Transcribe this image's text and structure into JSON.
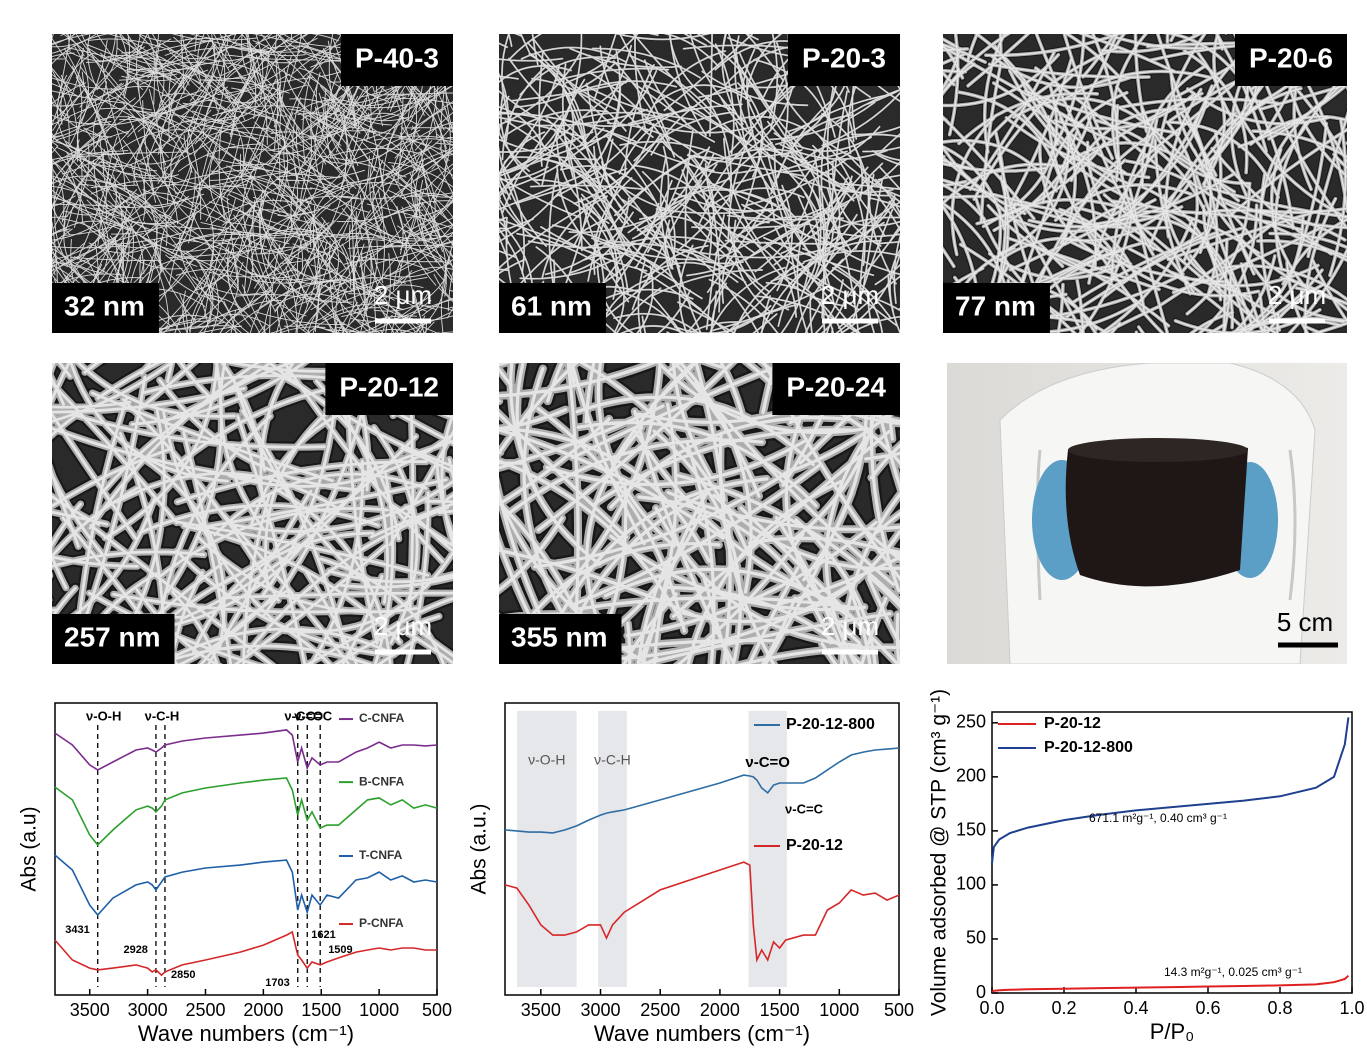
{
  "panels": [
    {
      "label": "P-40-3",
      "diameter": "32 nm",
      "scale": "2 μm"
    },
    {
      "label": "P-20-3",
      "diameter": "61 nm",
      "scale": "2 μm"
    },
    {
      "label": "P-20-6",
      "diameter": "77 nm",
      "scale": "2 μm"
    },
    {
      "label": "P-20-12",
      "diameter": "257 nm",
      "scale": "2 μm"
    },
    {
      "label": "P-20-24",
      "diameter": "355 nm",
      "scale": "2 μm"
    }
  ],
  "photo": {
    "scale": "5 cm"
  },
  "chart_data": [
    {
      "type": "line",
      "x_label": "Wave numbers (cm⁻¹)",
      "y_label": "Abs (a.u)",
      "xlim": [
        3800,
        500
      ],
      "xticks": [
        3500,
        3000,
        2500,
        2000,
        1500,
        1000,
        500
      ],
      "ylim": [
        0,
        100
      ],
      "x": [
        3800,
        3650,
        3500,
        3431,
        3300,
        3100,
        3000,
        2960,
        2928,
        2880,
        2850,
        2700,
        2500,
        2200,
        2000,
        1800,
        1750,
        1703,
        1670,
        1621,
        1580,
        1509,
        1450,
        1350,
        1200,
        1100,
        1000,
        900,
        800,
        700,
        600,
        500
      ],
      "series": [
        {
          "name": "C-CNFA",
          "color": "#7b2d8e",
          "values": [
            89.7,
            85.6,
            78.8,
            77.1,
            79.8,
            83.9,
            84.6,
            83.9,
            83.2,
            84.6,
            85.6,
            87.0,
            88.0,
            89.0,
            89.7,
            90.8,
            89.0,
            79.8,
            84.6,
            77.7,
            81.2,
            78.8,
            79.8,
            79.8,
            83.2,
            84.6,
            86.6,
            84.6,
            85.6,
            85.6,
            85.3,
            85.6
          ]
        },
        {
          "name": "B-CNFA",
          "color": "#2ca02c",
          "values": [
            71.2,
            66.8,
            54.8,
            51.4,
            56.5,
            63.4,
            64.7,
            64.0,
            62.7,
            64.7,
            66.8,
            69.2,
            70.9,
            72.6,
            73.6,
            74.3,
            70.2,
            61.6,
            66.8,
            59.9,
            62.7,
            57.2,
            58.2,
            58.2,
            63.4,
            66.8,
            67.5,
            65.1,
            66.8,
            64.0,
            65.1,
            64.0
          ]
        },
        {
          "name": "T-CNFA",
          "color": "#1f5fa8",
          "values": [
            47.9,
            42.8,
            30.8,
            27.4,
            33.2,
            37.7,
            38.7,
            37.7,
            36.0,
            38.7,
            40.4,
            42.1,
            43.5,
            44.5,
            45.5,
            46.2,
            42.1,
            29.1,
            34.2,
            28.4,
            34.2,
            30.8,
            34.2,
            33.2,
            39.4,
            40.1,
            42.1,
            39.4,
            40.8,
            38.7,
            39.4,
            38.7
          ]
        },
        {
          "name": "P-CNFA",
          "color": "#d62728",
          "values": [
            18.8,
            12.0,
            9.2,
            8.6,
            9.2,
            10.3,
            9.2,
            7.9,
            8.6,
            6.8,
            7.9,
            10.3,
            12.0,
            14.7,
            17.1,
            20.5,
            21.6,
            13.7,
            12.0,
            9.2,
            11.3,
            10.3,
            11.3,
            12.7,
            14.7,
            15.4,
            16.1,
            15.4,
            16.1,
            16.1,
            15.4,
            15.4
          ]
        }
      ],
      "peaks": [
        3431,
        2928,
        2850,
        1703,
        1621,
        1509
      ],
      "bonds": [
        "ν-O-H",
        "ν-C-H",
        "ν-C=O",
        "ν-C=C"
      ]
    },
    {
      "type": "line",
      "x_label": "Wave numbers (cm⁻¹)",
      "y_label": "Abs (a.u.)",
      "xlim": [
        3800,
        500
      ],
      "xticks": [
        3500,
        3000,
        2500,
        2000,
        1500,
        1000,
        500
      ],
      "ylim": [
        0,
        100
      ],
      "x": [
        3800,
        3700,
        3600,
        3500,
        3400,
        3300,
        3200,
        3100,
        3000,
        2950,
        2900,
        2800,
        2500,
        2000,
        1800,
        1750,
        1720,
        1690,
        1650,
        1600,
        1550,
        1500,
        1450,
        1300,
        1200,
        1100,
        1000,
        900,
        800,
        700,
        600,
        500
      ],
      "series": [
        {
          "name": "P-20-12-800",
          "color": "#2e6da4",
          "values": [
            56.5,
            56.2,
            55.8,
            55.8,
            55.5,
            56.5,
            57.9,
            59.9,
            61.6,
            62.3,
            62.7,
            63.4,
            66.8,
            72.6,
            75.3,
            75.0,
            74.7,
            73.6,
            70.9,
            69.2,
            71.9,
            72.6,
            72.6,
            72.6,
            74.3,
            77.1,
            79.8,
            82.2,
            83.2,
            83.9,
            84.2,
            84.6
          ]
        },
        {
          "name": "P-20-12",
          "color": "#d62728",
          "values": [
            37.7,
            36.6,
            30.8,
            24.0,
            20.5,
            20.5,
            21.6,
            24.0,
            24.0,
            19.5,
            24.0,
            28.4,
            36.0,
            42.8,
            45.5,
            44.5,
            24.0,
            12.0,
            15.4,
            12.0,
            18.2,
            16.1,
            18.8,
            20.5,
            20.5,
            29.1,
            31.5,
            36.0,
            34.2,
            34.9,
            32.5,
            34.2
          ]
        }
      ],
      "bands": [
        {
          "label": "ν-O-H",
          "range": [
            3700,
            3200
          ]
        },
        {
          "label": "ν-C-H",
          "range": [
            3020,
            2780
          ]
        },
        {
          "label": "ν-C=O",
          "range": [
            1760,
            1440
          ]
        }
      ],
      "annotations": [
        "ν-C=C"
      ]
    },
    {
      "type": "line",
      "x_label": "P/P₀",
      "y_label": "Volume adsorbed @ STP (cm³ g⁻¹)",
      "xlim": [
        0,
        1
      ],
      "xticks": [
        {
          "value": 0,
          "label": "0.0"
        },
        {
          "value": 0.2,
          "label": "0.2"
        },
        {
          "value": 0.4,
          "label": "0.4"
        },
        {
          "value": 0.6,
          "label": "0.6"
        },
        {
          "value": 0.8,
          "label": "0.8"
        },
        {
          "value": 1,
          "label": "1.0"
        }
      ],
      "ylim": [
        0,
        260
      ],
      "yticks": [
        0,
        50,
        100,
        150,
        200,
        250
      ],
      "x": [
        0,
        0.005,
        0.02,
        0.05,
        0.1,
        0.2,
        0.3,
        0.4,
        0.5,
        0.6,
        0.7,
        0.8,
        0.9,
        0.95,
        0.98,
        0.99
      ],
      "series": [
        {
          "name": "P-20-12",
          "color": "#e02020",
          "values": [
            1,
            2,
            2.5,
            3,
            3.5,
            4,
            4.5,
            5,
            5.5,
            6,
            6.5,
            7,
            8,
            10,
            13,
            16
          ]
        },
        {
          "name": "P-20-12-800",
          "color": "#1f3f8f",
          "values": [
            120,
            135,
            142,
            148,
            153,
            160,
            165,
            169,
            172,
            175,
            178,
            182,
            190,
            200,
            230,
            255
          ]
        }
      ],
      "annotations": [
        "671.1 m²g⁻¹, 0.40 cm³ g⁻¹",
        "14.3 m²g⁻¹, 0.025 cm³ g⁻¹"
      ]
    }
  ]
}
